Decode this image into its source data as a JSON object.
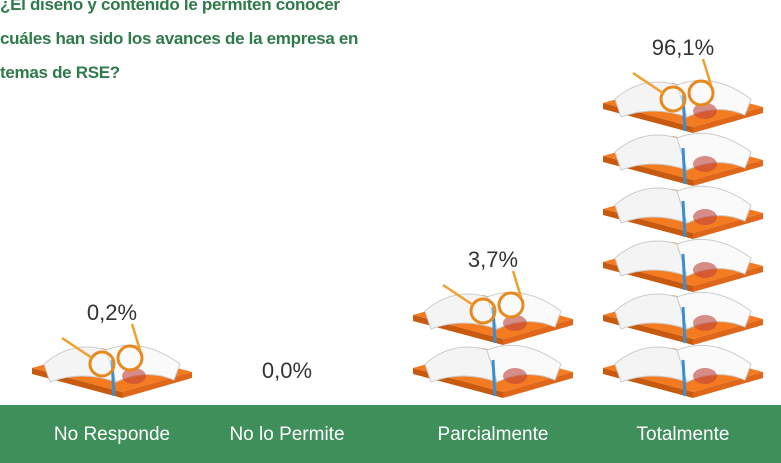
{
  "chart_data": {
    "type": "pictograph",
    "title": "¿El diseño y contenido le permiten conocer cuáles han sido los avances de la empresa en temas de RSE?",
    "categories": [
      "No Responde",
      "No lo Permite",
      "Parcialmente",
      "Totalmente"
    ],
    "values": [
      0.2,
      0.0,
      3.7,
      96.1
    ],
    "value_labels": [
      "0,2%",
      "0,0%",
      "3,7%",
      "96,1%"
    ],
    "color": "#f47b20",
    "band_color": "#3f8f5a"
  }
}
